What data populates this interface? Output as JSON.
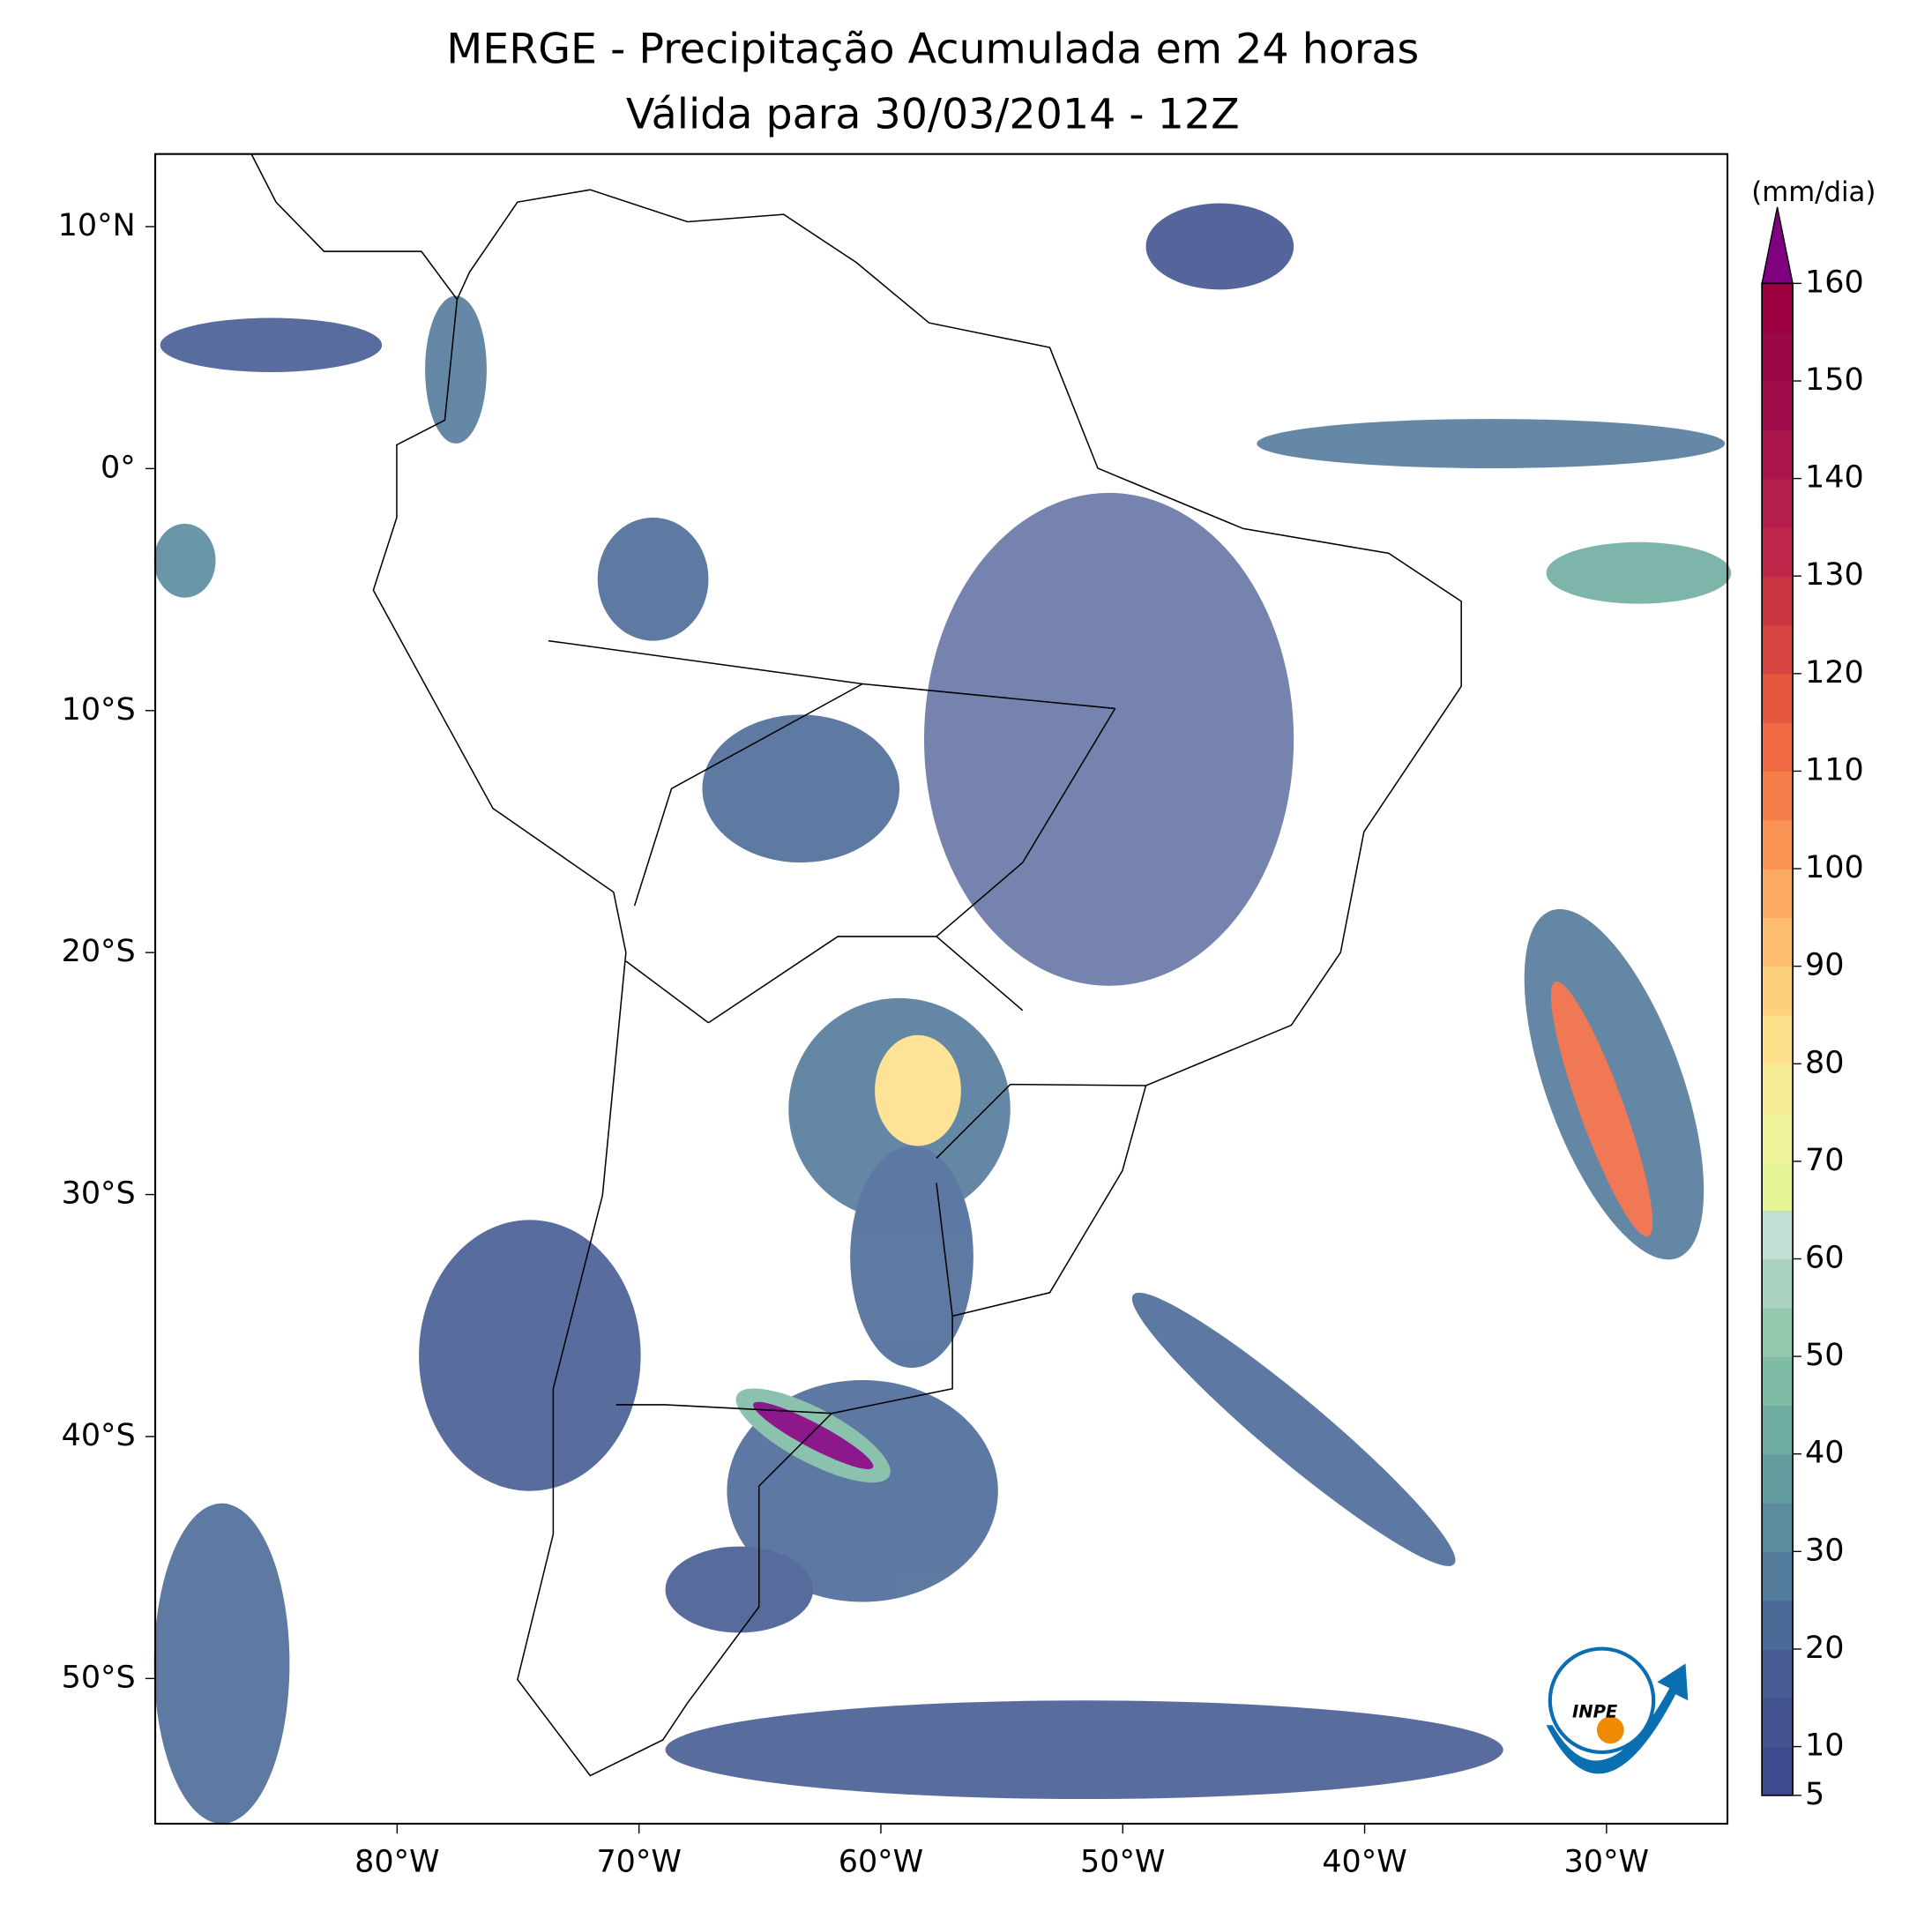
{
  "header": {
    "title": "MERGE - Precipitação Acumulada em 24 horas",
    "subtitle": "Válida para 30/03/2014 - 12Z"
  },
  "map": {
    "xlim": [
      -90,
      -25
    ],
    "ylim": [
      -56,
      13
    ],
    "xticks": [
      {
        "value": -80,
        "label": "80°W"
      },
      {
        "value": -70,
        "label": "70°W"
      },
      {
        "value": -60,
        "label": "60°W"
      },
      {
        "value": -50,
        "label": "50°W"
      },
      {
        "value": -40,
        "label": "40°W"
      },
      {
        "value": -30,
        "label": "30°W"
      }
    ],
    "yticks": [
      {
        "value": 10,
        "label": "10°N"
      },
      {
        "value": 0,
        "label": "0°"
      },
      {
        "value": -10,
        "label": "10°S"
      },
      {
        "value": -20,
        "label": "20°S"
      },
      {
        "value": -30,
        "label": "30°S"
      },
      {
        "value": -40,
        "label": "40°S"
      },
      {
        "value": -50,
        "label": "50°S"
      }
    ]
  },
  "colorbar": {
    "label": "(mm/dia)",
    "lim": [
      5,
      160
    ],
    "ticks": [
      5,
      10,
      20,
      30,
      40,
      50,
      60,
      70,
      80,
      90,
      100,
      110,
      120,
      130,
      140,
      150,
      160
    ],
    "colors": [
      "#3d4a8e",
      "#425390",
      "#475c93",
      "#4c6a98",
      "#537b9b",
      "#5a8c9d",
      "#649d9f",
      "#70ada1",
      "#7fbca6",
      "#93c8ae",
      "#a9d3bf",
      "#c1dfd2",
      "#e6f598",
      "#eef29a",
      "#f6ea95",
      "#fee08b",
      "#fdd07e",
      "#fdbd6f",
      "#fca962",
      "#f99455",
      "#f57f4b",
      "#ef6a43",
      "#e5563f",
      "#d8443f",
      "#cb3541",
      "#c0264a",
      "#b51d4a",
      "#a9144a",
      "#a00d4a",
      "#9a0848",
      "#9e0142"
    ],
    "extend_color": "#800080"
  },
  "logo": {
    "text": "INPE"
  }
}
